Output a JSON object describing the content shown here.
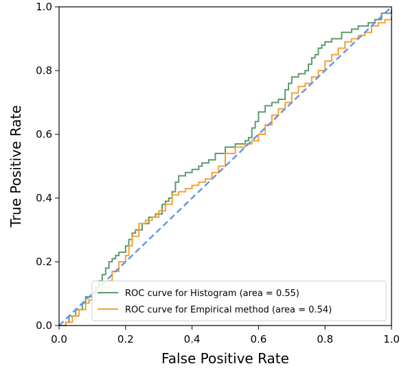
{
  "chart_data": {
    "type": "line",
    "title": "",
    "xlabel": "False Positive Rate",
    "ylabel": "True Positive Rate",
    "xlim": [
      0.0,
      1.0
    ],
    "ylim": [
      0.0,
      1.0
    ],
    "x_ticks": [
      0.0,
      0.2,
      0.4,
      0.6,
      0.8,
      1.0
    ],
    "y_ticks": [
      0.0,
      0.2,
      0.4,
      0.6,
      0.8,
      1.0
    ],
    "x_tick_labels": [
      "0.0",
      "0.2",
      "0.4",
      "0.6",
      "0.8",
      "1.0"
    ],
    "y_tick_labels": [
      "0.0",
      "0.2",
      "0.4",
      "0.6",
      "0.8",
      "1.0"
    ],
    "grid": false,
    "legend_position": "lower-right",
    "series": [
      {
        "name": "ROC curve for Histogram (area = 0.55)",
        "color": "#5b9a6e",
        "style": "steps",
        "x": [
          0.0,
          0.02,
          0.03,
          0.05,
          0.07,
          0.08,
          0.1,
          0.11,
          0.12,
          0.13,
          0.14,
          0.15,
          0.16,
          0.17,
          0.18,
          0.2,
          0.21,
          0.22,
          0.23,
          0.25,
          0.27,
          0.29,
          0.31,
          0.32,
          0.33,
          0.34,
          0.35,
          0.36,
          0.38,
          0.4,
          0.42,
          0.43,
          0.45,
          0.47,
          0.5,
          0.53,
          0.56,
          0.57,
          0.58,
          0.59,
          0.6,
          0.62,
          0.64,
          0.66,
          0.68,
          0.69,
          0.7,
          0.72,
          0.74,
          0.75,
          0.76,
          0.77,
          0.78,
          0.79,
          0.8,
          0.82,
          0.85,
          0.88,
          0.9,
          0.93,
          0.95,
          0.97,
          1.0
        ],
        "y": [
          0.0,
          0.01,
          0.03,
          0.05,
          0.07,
          0.09,
          0.1,
          0.12,
          0.14,
          0.16,
          0.18,
          0.2,
          0.21,
          0.22,
          0.23,
          0.25,
          0.27,
          0.29,
          0.3,
          0.32,
          0.34,
          0.35,
          0.38,
          0.39,
          0.4,
          0.42,
          0.45,
          0.47,
          0.48,
          0.49,
          0.5,
          0.51,
          0.52,
          0.54,
          0.56,
          0.57,
          0.58,
          0.59,
          0.62,
          0.64,
          0.67,
          0.69,
          0.7,
          0.71,
          0.74,
          0.76,
          0.78,
          0.79,
          0.8,
          0.82,
          0.84,
          0.85,
          0.87,
          0.88,
          0.89,
          0.9,
          0.92,
          0.93,
          0.94,
          0.95,
          0.96,
          0.98,
          0.99
        ]
      },
      {
        "name": "ROC curve for Empirical method (area = 0.54)",
        "color": "#f5a030",
        "style": "steps",
        "x": [
          0.0,
          0.02,
          0.04,
          0.06,
          0.08,
          0.09,
          0.11,
          0.13,
          0.15,
          0.16,
          0.18,
          0.2,
          0.21,
          0.22,
          0.24,
          0.26,
          0.28,
          0.3,
          0.32,
          0.34,
          0.36,
          0.38,
          0.4,
          0.42,
          0.44,
          0.46,
          0.48,
          0.5,
          0.53,
          0.56,
          0.58,
          0.6,
          0.62,
          0.64,
          0.66,
          0.68,
          0.7,
          0.72,
          0.74,
          0.76,
          0.78,
          0.8,
          0.82,
          0.84,
          0.86,
          0.88,
          0.9,
          0.92,
          0.94,
          0.96,
          0.98,
          1.0
        ],
        "y": [
          0.0,
          0.01,
          0.03,
          0.05,
          0.07,
          0.08,
          0.1,
          0.12,
          0.14,
          0.17,
          0.2,
          0.22,
          0.25,
          0.28,
          0.32,
          0.33,
          0.34,
          0.36,
          0.38,
          0.41,
          0.42,
          0.43,
          0.44,
          0.45,
          0.46,
          0.48,
          0.5,
          0.54,
          0.56,
          0.57,
          0.58,
          0.6,
          0.63,
          0.66,
          0.68,
          0.7,
          0.73,
          0.75,
          0.76,
          0.78,
          0.8,
          0.83,
          0.85,
          0.87,
          0.89,
          0.9,
          0.91,
          0.92,
          0.94,
          0.95,
          0.96,
          0.97
        ]
      },
      {
        "name": "",
        "color": "#6495ed",
        "style": "dashed",
        "x": [
          0.0,
          1.0
        ],
        "y": [
          0.0,
          1.0
        ]
      }
    ]
  }
}
